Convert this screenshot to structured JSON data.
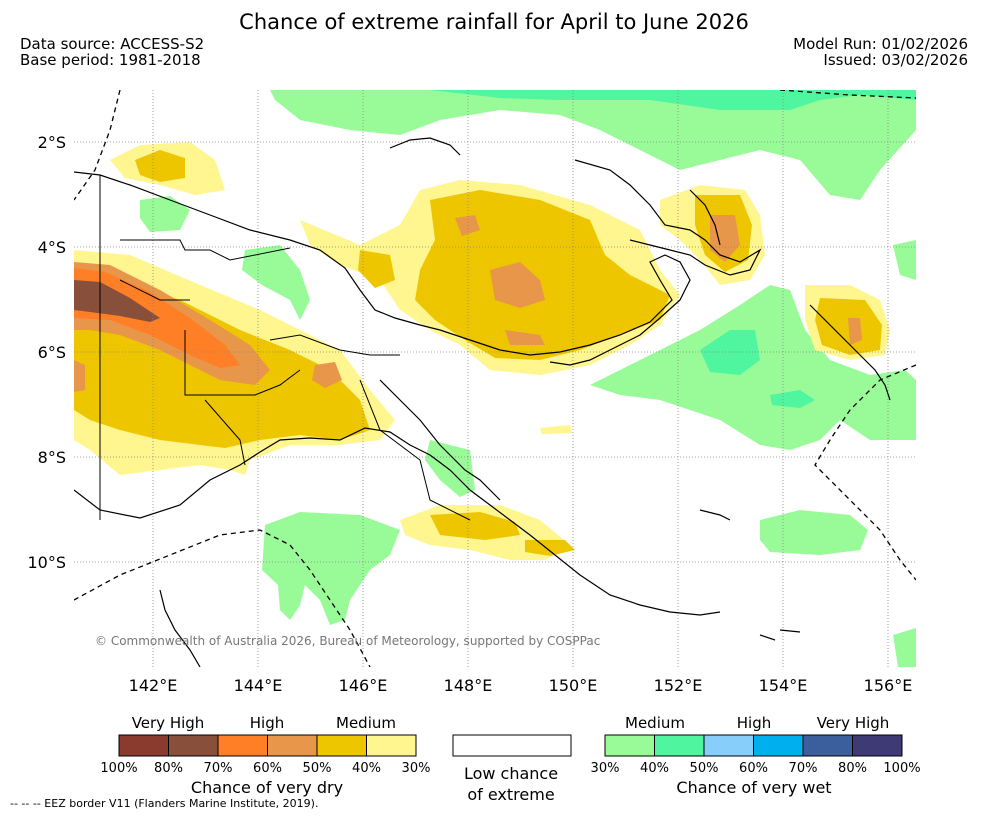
{
  "title": "Chance of extreme rainfall for April to June 2026",
  "header": {
    "data_source": "Data source: ACCESS-S2",
    "base_period": "Base period: 1981-2018",
    "model_run": "Model Run: 01/02/2026",
    "issued": "Issued: 03/02/2026"
  },
  "map": {
    "lat_ticks": [
      "2°S",
      "4°S",
      "6°S",
      "8°S",
      "10°S"
    ],
    "lon_ticks": [
      "142°E",
      "144°E",
      "146°E",
      "148°E",
      "150°E",
      "152°E",
      "154°E",
      "156°E"
    ],
    "copyright": "© Commonwealth of Australia 2026, Bureau of Meteorology, supported by COSPPac"
  },
  "legend": {
    "dry": {
      "title": "Chance of very dry",
      "categories": [
        "Very High",
        "High",
        "Medium"
      ],
      "percent_labels": [
        "100%",
        "80%",
        "70%",
        "60%",
        "50%",
        "40%",
        "30%"
      ],
      "colors": [
        "#8b3a2e",
        "#88503a",
        "#ff7f27",
        "#e8964a",
        "#eec600",
        "#fff68f"
      ]
    },
    "neutral": {
      "title_line1": "Low chance",
      "title_line2": "of extreme",
      "color": "#ffffff"
    },
    "wet": {
      "title": "Chance of very wet",
      "categories": [
        "Medium",
        "High",
        "Very High"
      ],
      "percent_labels": [
        "30%",
        "40%",
        "50%",
        "60%",
        "70%",
        "80%",
        "100%"
      ],
      "colors": [
        "#98fb98",
        "#50f5a0",
        "#87cefa",
        "#00b0ee",
        "#3a5f9c",
        "#3e3a76"
      ]
    }
  },
  "footer_note": "--  --  -- EEZ border V11 (Flanders Marine Institute, 2019)."
}
